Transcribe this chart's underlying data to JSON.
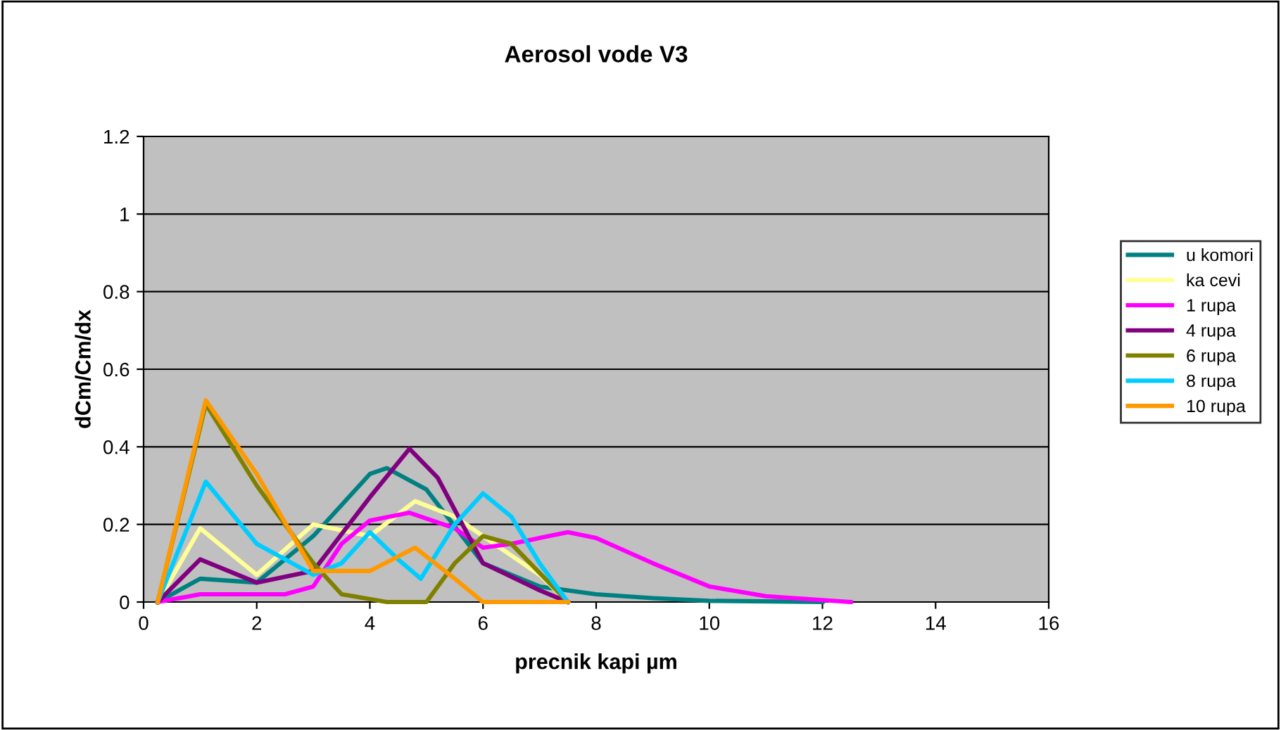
{
  "chart_data": {
    "type": "line",
    "title": "Aerosol vode V3",
    "xlabel": "precnik kapi µm",
    "ylabel": "dCm/Cm/dx",
    "xlim": [
      0,
      16
    ],
    "xticks": [
      0,
      2,
      4,
      6,
      8,
      10,
      12,
      14,
      16
    ],
    "ylim": [
      0,
      1.2
    ],
    "yticks": [
      0,
      0.2,
      0.4,
      0.6,
      0.8,
      1,
      1.2
    ],
    "grid": "y",
    "legend": "right",
    "marker": "none",
    "line_style": "solid",
    "series": [
      {
        "name": "u komori",
        "color": "#008080",
        "x": [
          0.25,
          1,
          2,
          3,
          4,
          4.3,
          5,
          6,
          7,
          8,
          9,
          10,
          12
        ],
        "values": [
          0,
          0.06,
          0.05,
          0.17,
          0.33,
          0.345,
          0.29,
          0.1,
          0.04,
          0.02,
          0.01,
          0.003,
          0
        ]
      },
      {
        "name": "ka cevi",
        "color": "#ffff99",
        "x": [
          0.25,
          1,
          2,
          3,
          4,
          4.8,
          5.5,
          6,
          7,
          7.5
        ],
        "values": [
          0,
          0.19,
          0.07,
          0.2,
          0.17,
          0.26,
          0.22,
          0.17,
          0.07,
          0
        ]
      },
      {
        "name": "1 rupa",
        "color": "#ff00ff",
        "x": [
          0.25,
          1,
          2,
          2.5,
          3,
          3.5,
          4,
          4.7,
          5.5,
          6,
          6.5,
          7.5,
          8,
          9,
          10,
          11,
          12.5
        ],
        "values": [
          0,
          0.02,
          0.02,
          0.02,
          0.04,
          0.15,
          0.21,
          0.23,
          0.19,
          0.14,
          0.15,
          0.18,
          0.165,
          0.1,
          0.04,
          0.015,
          0
        ]
      },
      {
        "name": "4 rupa",
        "color": "#800080",
        "x": [
          0.25,
          1,
          1.5,
          2,
          3,
          4,
          4.7,
          5.2,
          6,
          7,
          7.5
        ],
        "values": [
          0,
          0.11,
          0.08,
          0.05,
          0.08,
          0.27,
          0.395,
          0.32,
          0.1,
          0.03,
          0
        ]
      },
      {
        "name": "6 rupa",
        "color": "#808000",
        "x": [
          0.25,
          1.1,
          2,
          3,
          3.5,
          4.3,
          5,
          5.5,
          6,
          6.5,
          7.5
        ],
        "values": [
          0,
          0.51,
          0.3,
          0.1,
          0.02,
          0,
          0,
          0.1,
          0.17,
          0.15,
          0
        ]
      },
      {
        "name": "8 rupa",
        "color": "#00ccff",
        "x": [
          0.25,
          1.1,
          2,
          3,
          3.5,
          4,
          4.5,
          4.9,
          5.5,
          6,
          6.5,
          7,
          7.5
        ],
        "values": [
          0,
          0.31,
          0.15,
          0.07,
          0.1,
          0.18,
          0.11,
          0.06,
          0.2,
          0.28,
          0.22,
          0.1,
          0
        ]
      },
      {
        "name": "10 rupa",
        "color": "#ff9900",
        "x": [
          0.25,
          1.1,
          2,
          3,
          4,
          4.8,
          5.5,
          6,
          6.5,
          7.5
        ],
        "values": [
          0,
          0.52,
          0.33,
          0.08,
          0.08,
          0.14,
          0.06,
          0,
          0,
          0
        ]
      }
    ]
  }
}
